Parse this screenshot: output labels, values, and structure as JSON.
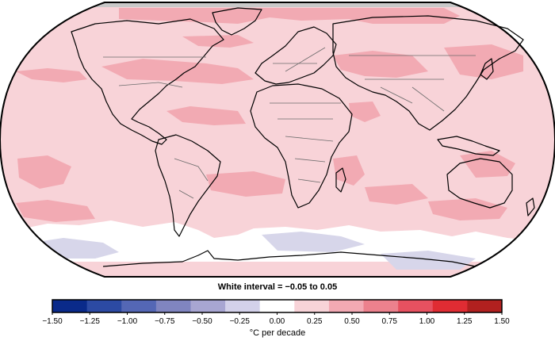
{
  "map": {
    "projection": "Robinson",
    "ocean_color": "#f7d3d7",
    "coast_color": "#000000",
    "border_color": "#6b6b6b",
    "graticule": false
  },
  "note": "White interval = −0.05 to 0.05",
  "legend": {
    "unit": "°C per decade",
    "ticks": [
      "−1.50",
      "−1.25",
      "−1.00",
      "−0.75",
      "−0.50",
      "−0.25",
      "0.00",
      "0.25",
      "0.50",
      "0.75",
      "1.00",
      "1.25",
      "1.50"
    ],
    "colors": [
      "#0a2a8a",
      "#2c4aa3",
      "#5467b5",
      "#8085c0",
      "#a8a6d2",
      "#d3d1ea",
      "#ffffff",
      "#f8d3d8",
      "#f2a9b3",
      "#ec818d",
      "#e75160",
      "#e02c33",
      "#b1201f"
    ]
  },
  "regions": {
    "background": "light-pink",
    "strong_warming": "dark-pink",
    "near_zero": "white",
    "slight_cooling": "lavender"
  }
}
